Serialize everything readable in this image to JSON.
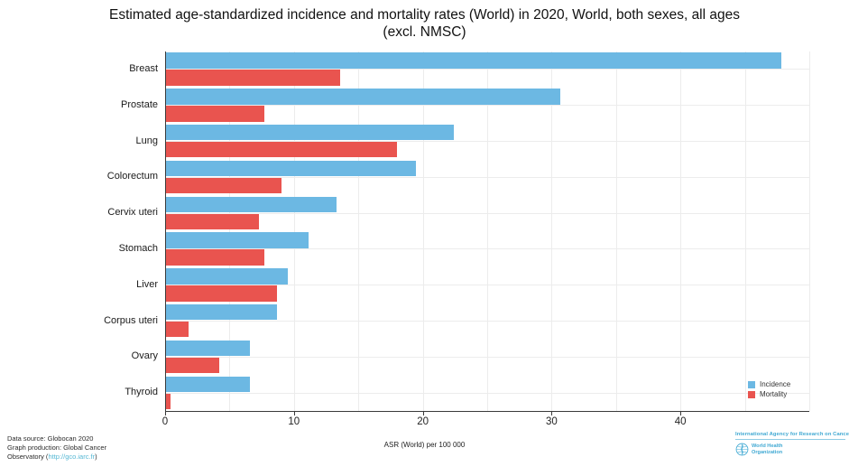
{
  "title": {
    "line1": "Estimated age-standardized incidence and mortality rates (World) in 2020, World, both sexes, all ages",
    "line2": "(excl. NMSC)"
  },
  "chart_data": {
    "type": "bar",
    "orientation": "horizontal",
    "title": "Estimated age-standardized incidence and mortality rates (World) in 2020, World, both sexes, all ages (excl. NMSC)",
    "categories": [
      "Breast",
      "Prostate",
      "Lung",
      "Colorectum",
      "Cervix uteri",
      "Stomach",
      "Liver",
      "Corpus uteri",
      "Ovary",
      "Thyroid"
    ],
    "series": [
      {
        "name": "Incidence",
        "color": "#6cb8e3",
        "values": [
          47.8,
          30.7,
          22.4,
          19.5,
          13.3,
          11.1,
          9.5,
          8.7,
          6.6,
          6.6
        ]
      },
      {
        "name": "Mortality",
        "color": "#e9544f",
        "values": [
          13.6,
          7.7,
          18.0,
          9.0,
          7.3,
          7.7,
          8.7,
          1.8,
          4.2,
          0.43
        ]
      }
    ],
    "xlabel": "ASR (World) per 100 000",
    "ylabel": "",
    "xlim": [
      0,
      50
    ],
    "xticks": [
      0,
      10,
      20,
      30,
      40
    ],
    "grid": true,
    "legend_position": "right-bottom"
  },
  "footer": {
    "left_line1": "Data source: Globocan 2020",
    "left_line2": "Graph production: Global Cancer",
    "left_line3_prefix": "Observatory (",
    "left_line3_link": "http://gco.iarc.fr",
    "left_line3_suffix": ")",
    "iarc": "International Agency for Research on Cancer",
    "who_line1": "World Health",
    "who_line2": "Organization"
  },
  "colors": {
    "incidence": "#6cb8e3",
    "mortality": "#e9544f",
    "grid": "#ececec",
    "axis": "#3a3a3a",
    "link": "#56b8d4",
    "iarc_blue": "#41a9d3"
  }
}
